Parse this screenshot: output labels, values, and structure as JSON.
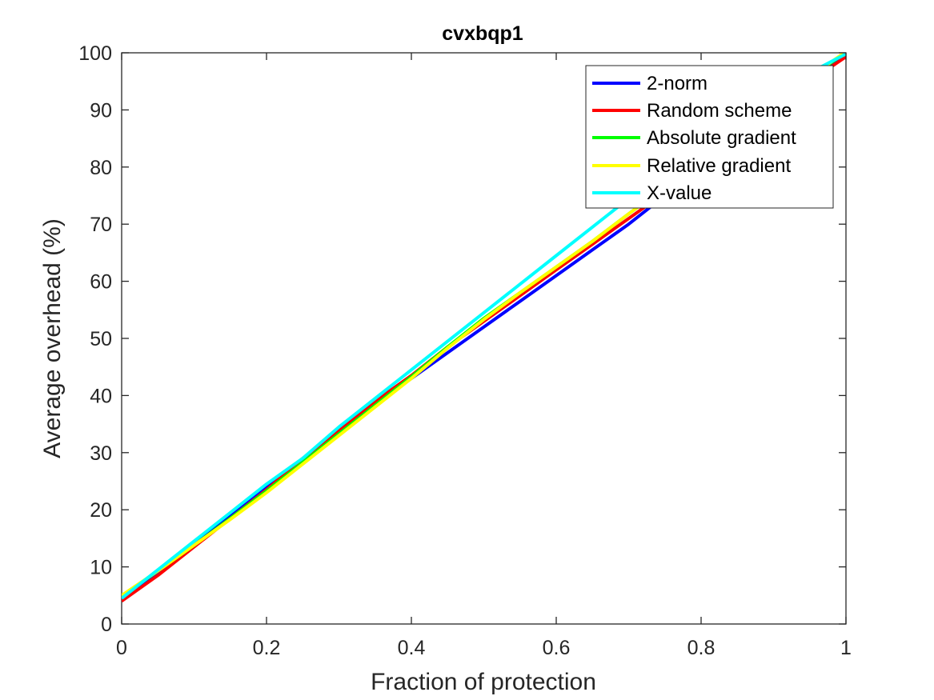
{
  "chart_data": {
    "type": "line",
    "title": "cvxbqp1",
    "xlabel": "Fraction of protection",
    "ylabel": "Average overhead (%)",
    "xlim": [
      0,
      1
    ],
    "ylim": [
      0,
      100
    ],
    "xticks": [
      0,
      0.2,
      0.4,
      0.6,
      0.8,
      1
    ],
    "xtick_labels": [
      "0",
      "0.2",
      "0.4",
      "0.6",
      "0.8",
      "1"
    ],
    "yticks": [
      0,
      10,
      20,
      30,
      40,
      50,
      60,
      70,
      80,
      90,
      100
    ],
    "ytick_labels": [
      "0",
      "10",
      "20",
      "30",
      "40",
      "50",
      "60",
      "70",
      "80",
      "90",
      "100"
    ],
    "grid": false,
    "legend_position": "top-right",
    "series": [
      {
        "name": "2-norm",
        "color": "#0000ff",
        "x": [
          0,
          0.05,
          0.1,
          0.15,
          0.2,
          0.25,
          0.3,
          0.35,
          0.4,
          0.45,
          0.5,
          0.55,
          0.6,
          0.65,
          0.7,
          0.75,
          0.8,
          0.85,
          0.9,
          0.95,
          1
        ],
        "y": [
          4.3,
          9.0,
          14.0,
          19.0,
          24.0,
          28.5,
          33.5,
          38.5,
          43.0,
          47.5,
          52.0,
          56.5,
          61.0,
          65.5,
          70.0,
          75.0,
          80.5,
          85.5,
          90.5,
          95.5,
          100
        ]
      },
      {
        "name": "Random scheme",
        "color": "#ff0000",
        "x": [
          0,
          0.05,
          0.1,
          0.15,
          0.2,
          0.25,
          0.3,
          0.35,
          0.4,
          0.45,
          0.5,
          0.55,
          0.6,
          0.65,
          0.7,
          0.75,
          0.8,
          0.85,
          0.9,
          0.95,
          1
        ],
        "y": [
          4.0,
          8.5,
          13.5,
          18.5,
          23.5,
          29.0,
          34.0,
          39.0,
          43.5,
          48.5,
          53.0,
          57.5,
          62.0,
          66.5,
          71.0,
          75.5,
          80.5,
          85.5,
          90.0,
          95.0,
          99.3
        ]
      },
      {
        "name": "Absolute gradient",
        "color": "#00ff00",
        "x": [
          0,
          0.05,
          0.1,
          0.15,
          0.2,
          0.25,
          0.3,
          0.35,
          0.4,
          0.45,
          0.5,
          0.55,
          0.6,
          0.65,
          0.7,
          0.75,
          0.8,
          0.85,
          0.9,
          0.95,
          1
        ],
        "y": [
          4.8,
          9.3,
          13.8,
          18.5,
          23.3,
          28.3,
          33.3,
          38.3,
          43.3,
          48.5,
          53.5,
          58.0,
          62.5,
          67.0,
          71.8,
          76.5,
          81.5,
          86.5,
          91.0,
          95.8,
          100
        ]
      },
      {
        "name": "Relative gradient",
        "color": "#ffff00",
        "x": [
          0,
          0.05,
          0.1,
          0.15,
          0.2,
          0.25,
          0.3,
          0.35,
          0.4,
          0.45,
          0.5,
          0.55,
          0.6,
          0.65,
          0.7,
          0.75,
          0.8,
          0.85,
          0.9,
          0.95,
          1
        ],
        "y": [
          5.0,
          9.3,
          13.8,
          18.3,
          23.0,
          28.0,
          33.0,
          38.0,
          43.0,
          48.3,
          53.3,
          58.0,
          62.5,
          67.0,
          71.8,
          76.5,
          81.5,
          86.5,
          91.0,
          95.8,
          100.2
        ]
      },
      {
        "name": "X-value",
        "color": "#00ffff",
        "x": [
          0,
          0.05,
          0.1,
          0.15,
          0.2,
          0.25,
          0.3,
          0.35,
          0.4,
          0.45,
          0.5,
          0.55,
          0.6,
          0.65,
          0.7,
          0.75,
          0.8,
          0.85,
          0.9,
          0.95,
          1
        ],
        "y": [
          4.5,
          9.5,
          14.5,
          19.5,
          24.5,
          29.0,
          34.5,
          39.5,
          44.5,
          49.5,
          54.5,
          59.5,
          64.5,
          69.5,
          74.5,
          79.0,
          83.5,
          88.0,
          92.5,
          96.5,
          99.8
        ]
      }
    ]
  }
}
